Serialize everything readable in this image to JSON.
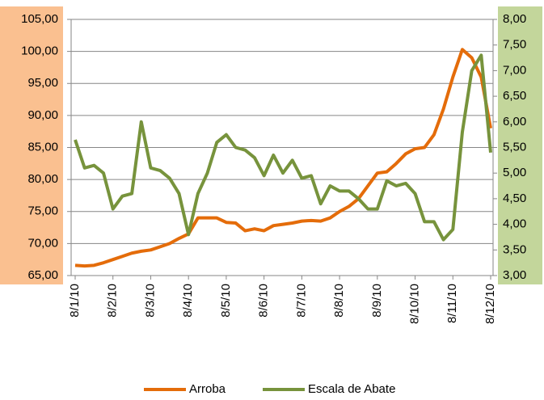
{
  "chart_data": {
    "type": "line",
    "categories": [
      "8/1/10",
      null,
      null,
      null,
      "8/2/10",
      null,
      null,
      null,
      "8/3/10",
      null,
      null,
      null,
      "8/4/10",
      null,
      null,
      null,
      "8/5/10",
      null,
      null,
      null,
      "8/6/10",
      null,
      null,
      null,
      "8/7/10",
      null,
      null,
      null,
      "8/8/10",
      null,
      null,
      null,
      "8/9/10",
      null,
      null,
      null,
      "8/10/10",
      null,
      null,
      null,
      "8/11/10",
      null,
      null,
      null,
      "8/12/10"
    ],
    "series": [
      {
        "name": "Arroba",
        "color": "#e46c0a",
        "values": [
          66.6,
          66.5,
          66.6,
          67.0,
          67.5,
          68.0,
          68.5,
          68.8,
          69.0,
          69.5,
          70.0,
          70.8,
          71.5,
          74.0,
          74.0,
          74.0,
          73.3,
          73.2,
          72.0,
          72.3,
          72.0,
          72.8,
          73.0,
          73.2,
          73.5,
          73.6,
          73.5,
          74.0,
          75.0,
          75.8,
          77.0,
          79.0,
          81.0,
          81.2,
          82.5,
          84.0,
          84.8,
          85.0,
          87.0,
          91.0,
          96.0,
          100.3,
          99.0,
          96.0,
          88.0
        ]
      },
      {
        "name": "Escala de Abate",
        "color": "#77933c",
        "axis": "y2",
        "values": [
          5.65,
          5.1,
          5.15,
          5.0,
          4.3,
          4.55,
          4.6,
          6.0,
          5.1,
          5.05,
          4.9,
          4.6,
          3.8,
          4.6,
          5.0,
          5.6,
          5.75,
          5.5,
          5.45,
          5.3,
          4.95,
          5.35,
          5.0,
          5.25,
          4.9,
          4.95,
          4.4,
          4.75,
          4.65,
          4.65,
          4.5,
          4.3,
          4.3,
          4.85,
          4.75,
          4.8,
          4.6,
          4.05,
          4.05,
          3.7,
          3.9,
          5.8,
          7.0,
          7.3,
          5.4
        ]
      }
    ],
    "ylim": [
      65,
      105
    ],
    "yticks": [
      {
        "value": 65,
        "label": "65,00"
      },
      {
        "value": 70,
        "label": "70,00"
      },
      {
        "value": 75,
        "label": "75,00"
      },
      {
        "value": 80,
        "label": "80,00"
      },
      {
        "value": 85,
        "label": "85,00"
      },
      {
        "value": 90,
        "label": "90,00"
      },
      {
        "value": 95,
        "label": "95,00"
      },
      {
        "value": 100,
        "label": "100,00"
      },
      {
        "value": 105,
        "label": "105,00"
      }
    ],
    "y2lim": [
      3,
      8
    ],
    "y2ticks": [
      {
        "value": 3,
        "label": "3,00"
      },
      {
        "value": 3.5,
        "label": "3,50"
      },
      {
        "value": 4,
        "label": "4,00"
      },
      {
        "value": 4.5,
        "label": "4,50"
      },
      {
        "value": 5,
        "label": "5,00"
      },
      {
        "value": 5.5,
        "label": "5,50"
      },
      {
        "value": 6,
        "label": "6,00"
      },
      {
        "value": 6.5,
        "label": "6,50"
      },
      {
        "value": 7,
        "label": "7,00"
      },
      {
        "value": 7.5,
        "label": "7,50"
      },
      {
        "value": 8,
        "label": "8,00"
      }
    ],
    "grid": true,
    "legend": "bottom"
  }
}
